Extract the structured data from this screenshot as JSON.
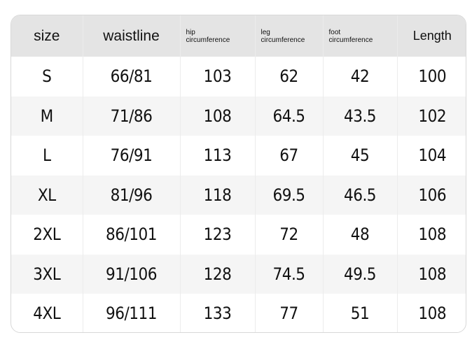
{
  "headers": {
    "size": "size",
    "waistline": "waistline",
    "hip_1": "hip",
    "hip_2": "circumference",
    "leg_1": "leg",
    "leg_2": "circumference",
    "foot_1": "foot",
    "foot_2": "circumference",
    "length": "Length"
  },
  "rows": [
    [
      "S",
      "66/81",
      "103",
      "62",
      "42",
      "100"
    ],
    [
      "M",
      "71/86",
      "108",
      "64.5",
      "43.5",
      "102"
    ],
    [
      "L",
      "76/91",
      "113",
      "67",
      "45",
      "104"
    ],
    [
      "XL",
      "81/96",
      "118",
      "69.5",
      "46.5",
      "106"
    ],
    [
      "2XL",
      "86/101",
      "123",
      "72",
      "48",
      "108"
    ],
    [
      "3XL",
      "91/106",
      "128",
      "74.5",
      "49.5",
      "108"
    ],
    [
      "4XL",
      "96/111",
      "133",
      "77",
      "51",
      "108"
    ]
  ]
}
